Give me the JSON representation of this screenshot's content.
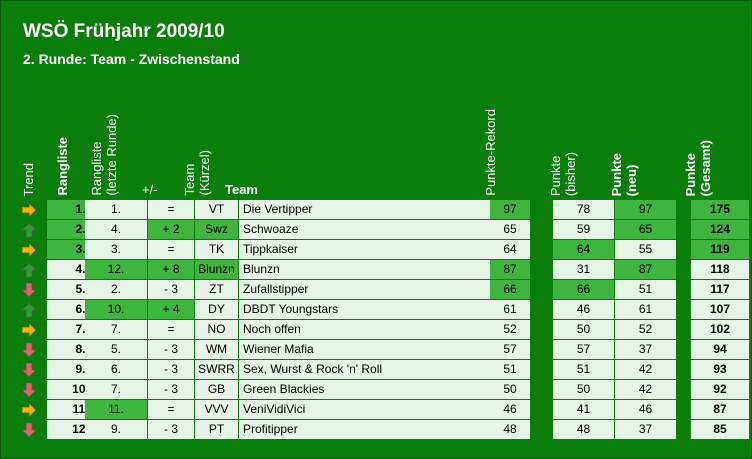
{
  "title": "WSÖ Frühjahr 2009/10",
  "subtitle": "2. Runde: Team - Zwischenstand",
  "headers": {
    "trend": "Trend",
    "rangliste": "Rangliste",
    "rangliste_letzte_line1": "Rangliste",
    "rangliste_letzte_line2": "(letzte Runde)",
    "plusminus": "+/-",
    "team_kuerzel_line1": "Team",
    "team_kuerzel_line2": "(Kürzel)",
    "team": "Team",
    "punkte_rekord": "Punkte-Rekord",
    "punkte_bisher_line1": "Punkte",
    "punkte_bisher_line2": "(bisher)",
    "punkte_neu_line1": "Punkte",
    "punkte_neu_line2": "(neu)",
    "punkte_gesamt_line1": "Punkte",
    "punkte_gesamt_line2": "(Gesamt)"
  },
  "colors": {
    "frame": "#0b7d0b",
    "highlight": "#3fb43f",
    "light": "#e6f5e6",
    "arrow_up": "#2e9e2e",
    "arrow_down": "#e06666",
    "arrow_right": "#f0b400"
  },
  "rows": [
    {
      "trend": "right",
      "rank": "1.",
      "prev": "1.",
      "diff": "=",
      "abbr": "VT",
      "team": "Die Vertipper",
      "rekord": "97",
      "bisher": "78",
      "neu": "97",
      "gesamt": "175",
      "hl_rank": true,
      "hl_prev": false,
      "hl_diff": false,
      "hl_abbr": false,
      "hl_rekord": true,
      "hl_bisher": false,
      "hl_neu": true,
      "hl_gesamt": true
    },
    {
      "trend": "up",
      "rank": "2.",
      "prev": "4.",
      "diff": "+ 2",
      "abbr": "Swz",
      "team": "Schwoaze",
      "rekord": "65",
      "bisher": "59",
      "neu": "65",
      "gesamt": "124",
      "hl_rank": true,
      "hl_prev": false,
      "hl_diff": true,
      "hl_abbr": true,
      "hl_rekord": false,
      "hl_bisher": false,
      "hl_neu": true,
      "hl_gesamt": true
    },
    {
      "trend": "right",
      "rank": "3.",
      "prev": "3.",
      "diff": "=",
      "abbr": "TK",
      "team": "Tippkaiser",
      "rekord": "64",
      "bisher": "64",
      "neu": "55",
      "gesamt": "119",
      "hl_rank": true,
      "hl_prev": false,
      "hl_diff": false,
      "hl_abbr": false,
      "hl_rekord": false,
      "hl_bisher": true,
      "hl_neu": false,
      "hl_gesamt": true
    },
    {
      "trend": "up",
      "rank": "4.",
      "prev": "12.",
      "diff": "+ 8",
      "abbr": "Blunzn",
      "team": "Blunzn",
      "rekord": "87",
      "bisher": "31",
      "neu": "87",
      "gesamt": "118",
      "hl_rank": false,
      "hl_prev": true,
      "hl_diff": true,
      "hl_abbr": true,
      "hl_rekord": true,
      "hl_bisher": false,
      "hl_neu": true,
      "hl_gesamt": false
    },
    {
      "trend": "down",
      "rank": "5.",
      "prev": "2.",
      "diff": "- 3",
      "abbr": "ZT",
      "team": "Zufallstipper",
      "rekord": "66",
      "bisher": "66",
      "neu": "51",
      "gesamt": "117",
      "hl_rank": false,
      "hl_prev": false,
      "hl_diff": false,
      "hl_abbr": false,
      "hl_rekord": true,
      "hl_bisher": true,
      "hl_neu": false,
      "hl_gesamt": false
    },
    {
      "trend": "up",
      "rank": "6.",
      "prev": "10.",
      "diff": "+ 4",
      "abbr": "DY",
      "team": "DBDT Youngstars",
      "rekord": "61",
      "bisher": "46",
      "neu": "61",
      "gesamt": "107",
      "hl_rank": false,
      "hl_prev": true,
      "hl_diff": true,
      "hl_abbr": false,
      "hl_rekord": false,
      "hl_bisher": false,
      "hl_neu": false,
      "hl_gesamt": false
    },
    {
      "trend": "right",
      "rank": "7.",
      "prev": "7.",
      "diff": "=",
      "abbr": "NO",
      "team": "Noch offen",
      "rekord": "52",
      "bisher": "50",
      "neu": "52",
      "gesamt": "102",
      "hl_rank": false,
      "hl_prev": false,
      "hl_diff": false,
      "hl_abbr": false,
      "hl_rekord": false,
      "hl_bisher": false,
      "hl_neu": false,
      "hl_gesamt": false
    },
    {
      "trend": "down",
      "rank": "8.",
      "prev": "5.",
      "diff": "- 3",
      "abbr": "WM",
      "team": "Wiener Mafia",
      "rekord": "57",
      "bisher": "57",
      "neu": "37",
      "gesamt": "94",
      "hl_rank": false,
      "hl_prev": false,
      "hl_diff": false,
      "hl_abbr": false,
      "hl_rekord": false,
      "hl_bisher": false,
      "hl_neu": false,
      "hl_gesamt": false
    },
    {
      "trend": "down",
      "rank": "9.",
      "prev": "6.",
      "diff": "- 3",
      "abbr": "SWRR",
      "team": "Sex, Wurst & Rock 'n' Roll",
      "rekord": "51",
      "bisher": "51",
      "neu": "42",
      "gesamt": "93",
      "hl_rank": false,
      "hl_prev": false,
      "hl_diff": false,
      "hl_abbr": false,
      "hl_rekord": false,
      "hl_bisher": false,
      "hl_neu": false,
      "hl_gesamt": false
    },
    {
      "trend": "down",
      "rank": "10.",
      "prev": "7.",
      "diff": "- 3",
      "abbr": "GB",
      "team": "Green Blackies",
      "rekord": "50",
      "bisher": "50",
      "neu": "42",
      "gesamt": "92",
      "hl_rank": false,
      "hl_prev": false,
      "hl_diff": false,
      "hl_abbr": false,
      "hl_rekord": false,
      "hl_bisher": false,
      "hl_neu": false,
      "hl_gesamt": false
    },
    {
      "trend": "right",
      "rank": "11.",
      "prev": "11.",
      "diff": "=",
      "abbr": "VVV",
      "team": "VeniVidiVici",
      "rekord": "46",
      "bisher": "41",
      "neu": "46",
      "gesamt": "87",
      "hl_rank": false,
      "hl_prev": true,
      "hl_diff": false,
      "hl_abbr": false,
      "hl_rekord": false,
      "hl_bisher": false,
      "hl_neu": false,
      "hl_gesamt": false
    },
    {
      "trend": "down",
      "rank": "12.",
      "prev": "9.",
      "diff": "- 3",
      "abbr": "PT",
      "team": "Profitipper",
      "rekord": "48",
      "bisher": "48",
      "neu": "37",
      "gesamt": "85",
      "hl_rank": false,
      "hl_prev": false,
      "hl_diff": false,
      "hl_abbr": false,
      "hl_rekord": false,
      "hl_bisher": false,
      "hl_neu": false,
      "hl_gesamt": false
    }
  ]
}
